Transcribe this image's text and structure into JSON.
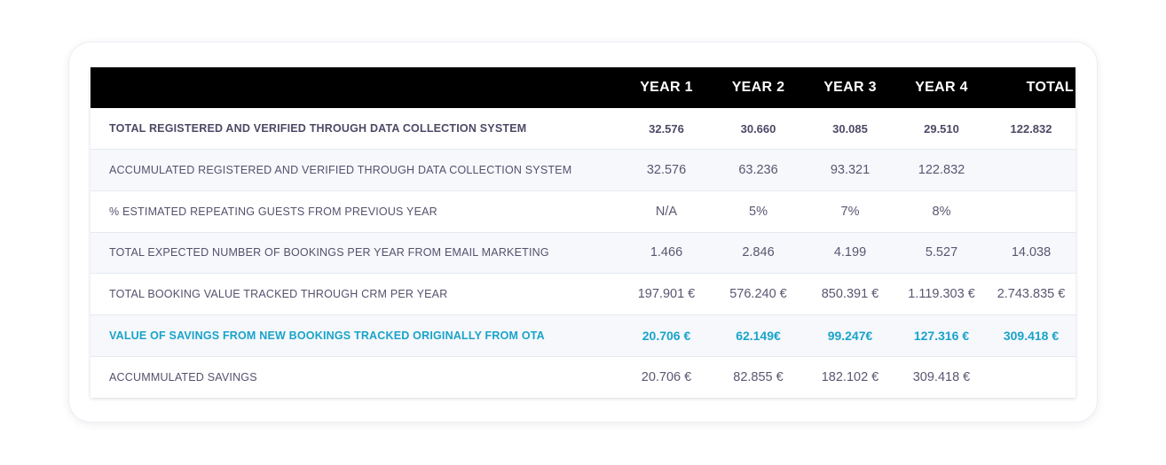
{
  "colors": {
    "header_bg": "#000000",
    "header_text": "#ffffff",
    "accent": "#1aa3c9",
    "body_text": "#55516d",
    "alt_row": "#f6f8fc"
  },
  "table": {
    "columns": [
      "",
      "YEAR 1",
      "YEAR 2",
      "YEAR 3",
      "YEAR 4",
      "TOTAL"
    ],
    "rows": [
      {
        "label": "TOTAL REGISTERED AND VERIFIED THROUGH DATA COLLECTION SYSTEM",
        "values": [
          "32.576",
          "30.660",
          "30.085",
          "29.510",
          "122.832"
        ]
      },
      {
        "label": "ACCUMULATED REGISTERED AND VERIFIED THROUGH DATA COLLECTION SYSTEM",
        "values": [
          "32.576",
          "63.236",
          "93.321",
          "122.832",
          ""
        ]
      },
      {
        "label": "% ESTIMATED REPEATING GUESTS FROM PREVIOUS YEAR",
        "values": [
          "N/A",
          "5%",
          "7%",
          "8%",
          ""
        ]
      },
      {
        "label": "TOTAL EXPECTED NUMBER OF BOOKINGS PER YEAR FROM EMAIL MARKETING",
        "values": [
          "1.466",
          "2.846",
          "4.199",
          "5.527",
          "14.038"
        ]
      },
      {
        "label": "TOTAL BOOKING VALUE TRACKED THROUGH CRM PER YEAR",
        "values": [
          "197.901 €",
          "576.240 €",
          "850.391 €",
          "1.119.303 €",
          "2.743.835 €"
        ]
      },
      {
        "label": "VALUE OF SAVINGS FROM NEW BOOKINGS TRACKED ORIGINALLY FROM OTA",
        "values": [
          "20.706 €",
          "62.149€",
          "99.247€",
          "127.316 €",
          "309.418 €"
        ]
      },
      {
        "label": "ACCUMMULATED SAVINGS",
        "values": [
          "20.706 €",
          "82.855 €",
          "182.102 €",
          "309.418 €",
          ""
        ]
      }
    ]
  }
}
